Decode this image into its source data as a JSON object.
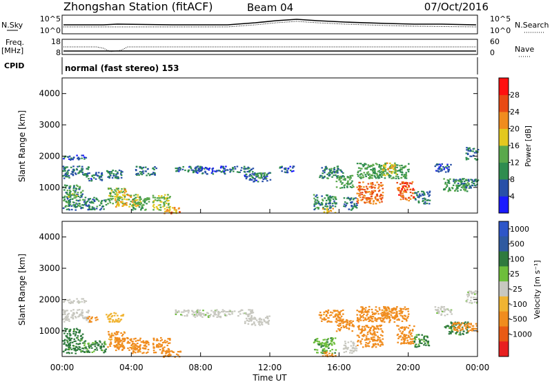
{
  "header": {
    "station": "Zhongshan Station (fitACF)",
    "beam": "Beam 04",
    "date": "07/Oct/2016"
  },
  "scan_panels": {
    "nsky_label": "N.Sky",
    "nsky_ticks": [
      "10^5",
      "10^0"
    ],
    "nsearch_label": "N.Search",
    "nsearch_ticks": [
      "10^5",
      "10^0"
    ],
    "freq_label": "Freq.",
    "freq_unit": "[MHz]",
    "freq_ticks": [
      "18",
      "8"
    ],
    "nave_label": "Nave",
    "nave_ticks": [
      "60",
      "0"
    ],
    "cpid_label": "CPID",
    "cpid_text": "normal (fast stereo) 153"
  },
  "colors": {
    "power_scale": [
      "#1a1aff",
      "#2850a8",
      "#2f8c4f",
      "#5aa84b",
      "#e3c81e",
      "#f08c1e",
      "#e84a14",
      "#ff1010"
    ],
    "velocity_scale": [
      "#2e56c8",
      "#2f5aa0",
      "#2f7a3e",
      "#6ebe3c",
      "#c8c8c0",
      "#f0b432",
      "#f08c1e",
      "#e85a14",
      "#e82020"
    ]
  },
  "chart_data": [
    {
      "type": "heatmap",
      "name": "power",
      "ylabel": "Slant Range [km]",
      "y_ticks": [
        "4000",
        "3000",
        "2000",
        "1000"
      ],
      "ylim": [
        180,
        4500
      ],
      "x_range_hours": [
        0,
        24
      ],
      "colorbar_label": "Power [dB]",
      "colorbar_ticks": [
        "28",
        "24",
        "20",
        "16",
        "12",
        "8",
        "4"
      ],
      "colorbar_range": [
        0,
        32
      ],
      "regions": [
        {
          "t": [
            0.0,
            1.4
          ],
          "r": [
            1900,
            2050
          ],
          "v": 6
        },
        {
          "t": [
            0.0,
            1.5
          ],
          "r": [
            1300,
            1700
          ],
          "v": 8
        },
        {
          "t": [
            0.0,
            1.2
          ],
          "r": [
            300,
            1100
          ],
          "v": 10
        },
        {
          "t": [
            0.3,
            0.8
          ],
          "r": [
            700,
            900
          ],
          "v": 14
        },
        {
          "t": [
            1.5,
            2.3
          ],
          "r": [
            1200,
            1500
          ],
          "v": 7
        },
        {
          "t": [
            1.2,
            2.5
          ],
          "r": [
            300,
            700
          ],
          "v": 9
        },
        {
          "t": [
            2.5,
            3.5
          ],
          "r": [
            1300,
            1600
          ],
          "v": 8
        },
        {
          "t": [
            2.6,
            3.6
          ],
          "r": [
            500,
            1000
          ],
          "v": 14
        },
        {
          "t": [
            3.0,
            4.5
          ],
          "r": [
            400,
            800
          ],
          "v": 18
        },
        {
          "t": [
            3.2,
            3.8
          ],
          "r": [
            850,
            950
          ],
          "v": 22
        },
        {
          "t": [
            4.0,
            5.0
          ],
          "r": [
            300,
            700
          ],
          "v": 12
        },
        {
          "t": [
            4.2,
            5.4
          ],
          "r": [
            1400,
            1700
          ],
          "v": 8
        },
        {
          "t": [
            5.2,
            6.2
          ],
          "r": [
            300,
            800
          ],
          "v": 16
        },
        {
          "t": [
            5.8,
            6.8
          ],
          "r": [
            180,
            400
          ],
          "v": 21
        },
        {
          "t": [
            6.5,
            8.0
          ],
          "r": [
            1500,
            1700
          ],
          "v": 7
        },
        {
          "t": [
            7.5,
            9.5
          ],
          "r": [
            1450,
            1700
          ],
          "v": 6
        },
        {
          "t": [
            9.5,
            11.0
          ],
          "r": [
            1500,
            1700
          ],
          "v": 8
        },
        {
          "t": [
            10.5,
            12.0
          ],
          "r": [
            1200,
            1500
          ],
          "v": 7
        },
        {
          "t": [
            11.0,
            11.8
          ],
          "r": [
            1300,
            1500
          ],
          "v": 10
        },
        {
          "t": [
            12.5,
            13.5
          ],
          "r": [
            1500,
            1700
          ],
          "v": 6
        },
        {
          "t": [
            14.8,
            16.2
          ],
          "r": [
            1300,
            1700
          ],
          "v": 9
        },
        {
          "t": [
            14.5,
            15.8
          ],
          "r": [
            300,
            800
          ],
          "v": 10
        },
        {
          "t": [
            15.0,
            15.8
          ],
          "r": [
            200,
            350
          ],
          "v": 20
        },
        {
          "t": [
            15.8,
            16.8
          ],
          "r": [
            1000,
            1400
          ],
          "v": 12
        },
        {
          "t": [
            16.2,
            17.0
          ],
          "r": [
            300,
            700
          ],
          "v": 8
        },
        {
          "t": [
            17.0,
            18.5
          ],
          "r": [
            500,
            1200
          ],
          "v": 24
        },
        {
          "t": [
            17.0,
            20.0
          ],
          "r": [
            1300,
            1800
          ],
          "v": 12
        },
        {
          "t": [
            18.5,
            19.3
          ],
          "r": [
            1400,
            1800
          ],
          "v": 18
        },
        {
          "t": [
            19.3,
            20.3
          ],
          "r": [
            600,
            1200
          ],
          "v": 25
        },
        {
          "t": [
            20.3,
            21.2
          ],
          "r": [
            500,
            900
          ],
          "v": 8
        },
        {
          "t": [
            21.5,
            22.5
          ],
          "r": [
            1500,
            1800
          ],
          "v": 6
        },
        {
          "t": [
            22.0,
            23.4
          ],
          "r": [
            900,
            1300
          ],
          "v": 12
        },
        {
          "t": [
            22.5,
            24.0
          ],
          "r": [
            1000,
            1300
          ],
          "v": 9
        },
        {
          "t": [
            23.3,
            24.0
          ],
          "r": [
            1900,
            2300
          ],
          "v": 8
        }
      ]
    },
    {
      "type": "heatmap",
      "name": "velocity",
      "ylabel": "Slant Range [km]",
      "y_ticks": [
        "4000",
        "3000",
        "2000",
        "1000"
      ],
      "ylim": [
        180,
        4500
      ],
      "x_range_hours": [
        0,
        24
      ],
      "colorbar_label": "Velocity [m s⁻¹]",
      "colorbar_ticks": [
        "1000",
        "500",
        "100",
        "25",
        "-25",
        "-100",
        "-500",
        "-1000"
      ],
      "colorbar_range": [
        -1000,
        1000
      ],
      "regions": [
        {
          "t": [
            0.0,
            1.4
          ],
          "r": [
            1900,
            2050
          ],
          "v": 10
        },
        {
          "t": [
            0.0,
            1.5
          ],
          "r": [
            1300,
            1700
          ],
          "v": 5
        },
        {
          "t": [
            0.0,
            1.2
          ],
          "r": [
            300,
            1100
          ],
          "v": 150
        },
        {
          "t": [
            1.2,
            2.5
          ],
          "r": [
            300,
            700
          ],
          "v": 120
        },
        {
          "t": [
            1.4,
            2.0
          ],
          "r": [
            1300,
            1500
          ],
          "v": -150
        },
        {
          "t": [
            2.5,
            3.5
          ],
          "r": [
            1300,
            1600
          ],
          "v": -60
        },
        {
          "t": [
            2.6,
            3.6
          ],
          "r": [
            500,
            1000
          ],
          "v": -150
        },
        {
          "t": [
            3.0,
            4.5
          ],
          "r": [
            400,
            800
          ],
          "v": -200
        },
        {
          "t": [
            4.0,
            5.0
          ],
          "r": [
            300,
            700
          ],
          "v": -150
        },
        {
          "t": [
            5.2,
            6.2
          ],
          "r": [
            300,
            800
          ],
          "v": -200
        },
        {
          "t": [
            5.8,
            6.8
          ],
          "r": [
            180,
            400
          ],
          "v": -250
        },
        {
          "t": [
            6.5,
            8.0
          ],
          "r": [
            1500,
            1700
          ],
          "v": 10
        },
        {
          "t": [
            7.5,
            9.5
          ],
          "r": [
            1450,
            1700
          ],
          "v": 10
        },
        {
          "t": [
            9.5,
            11.0
          ],
          "r": [
            1500,
            1700
          ],
          "v": 8
        },
        {
          "t": [
            10.5,
            12.0
          ],
          "r": [
            1200,
            1500
          ],
          "v": 5
        },
        {
          "t": [
            14.8,
            16.2
          ],
          "r": [
            1300,
            1700
          ],
          "v": -150
        },
        {
          "t": [
            14.5,
            15.8
          ],
          "r": [
            300,
            800
          ],
          "v": 80
        },
        {
          "t": [
            15.0,
            15.8
          ],
          "r": [
            200,
            350
          ],
          "v": -200
        },
        {
          "t": [
            15.8,
            16.8
          ],
          "r": [
            1000,
            1400
          ],
          "v": -200
        },
        {
          "t": [
            16.2,
            17.0
          ],
          "r": [
            300,
            700
          ],
          "v": 0
        },
        {
          "t": [
            17.0,
            18.5
          ],
          "r": [
            500,
            1200
          ],
          "v": -250
        },
        {
          "t": [
            17.0,
            20.0
          ],
          "r": [
            1300,
            1800
          ],
          "v": -200
        },
        {
          "t": [
            18.5,
            19.3
          ],
          "r": [
            1400,
            1800
          ],
          "v": -150
        },
        {
          "t": [
            19.3,
            20.3
          ],
          "r": [
            600,
            1200
          ],
          "v": -200
        },
        {
          "t": [
            20.3,
            21.2
          ],
          "r": [
            500,
            900
          ],
          "v": 120
        },
        {
          "t": [
            21.5,
            22.5
          ],
          "r": [
            1500,
            1800
          ],
          "v": 10
        },
        {
          "t": [
            22.0,
            23.4
          ],
          "r": [
            900,
            1300
          ],
          "v": 150
        },
        {
          "t": [
            22.5,
            24.0
          ],
          "r": [
            1000,
            1300
          ],
          "v": -200
        },
        {
          "t": [
            23.3,
            24.0
          ],
          "r": [
            1900,
            2300
          ],
          "v": 10
        }
      ]
    }
  ],
  "time_axis": {
    "label": "Time UT",
    "ticks": [
      "00:00",
      "04:00",
      "08:00",
      "12:00",
      "16:00",
      "20:00",
      "00:00"
    ]
  }
}
